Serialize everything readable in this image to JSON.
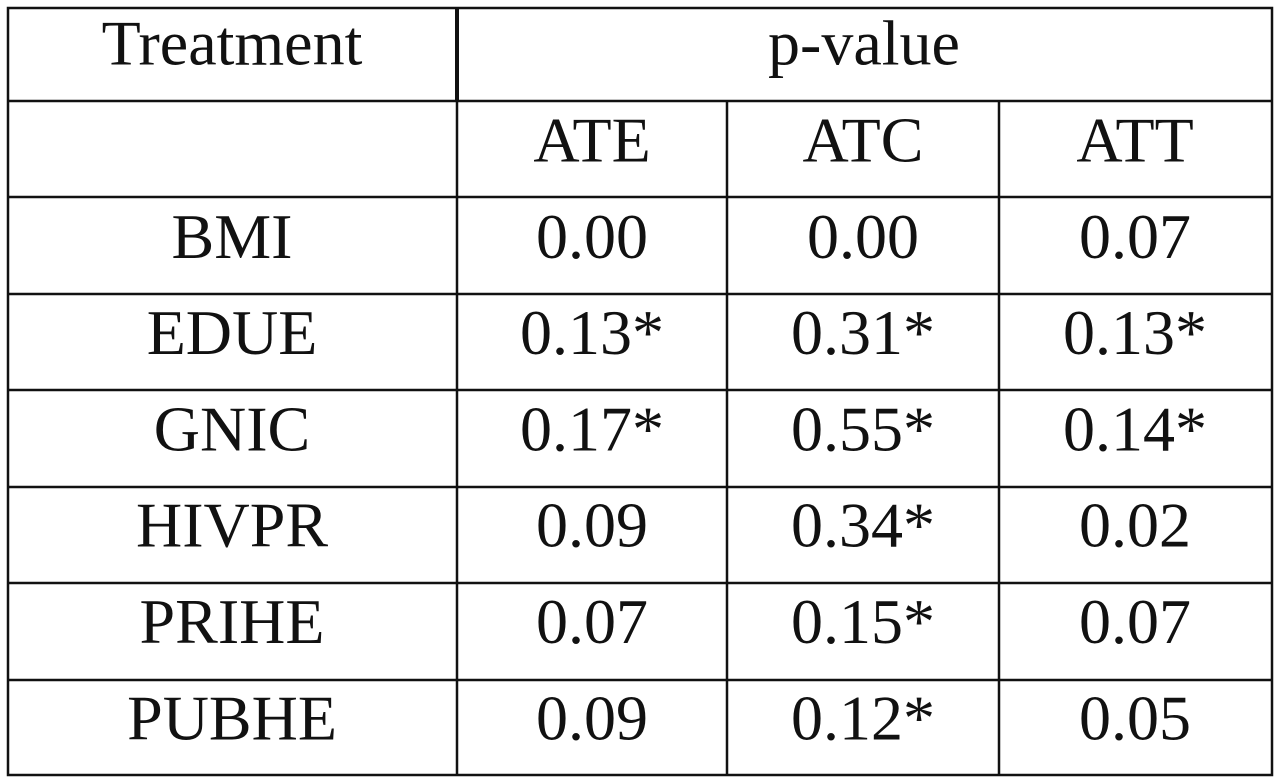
{
  "table": {
    "header": [
      "Treatment",
      "p-value"
    ],
    "subheader": [
      "ATE",
      "ATC",
      "ATT"
    ],
    "rows": [
      [
        "BMI",
        "0.00",
        "0.00",
        "0.07"
      ],
      [
        "EDUE",
        "0.13*",
        "0.31*",
        "0.13*"
      ],
      [
        "GNIC",
        "0.17*",
        "0.55*",
        "0.14*"
      ],
      [
        "HIVPR",
        "0.09",
        "0.34*",
        "0.02"
      ],
      [
        "PRIHE",
        "0.07",
        "0.15*",
        "0.07"
      ],
      [
        "PUBHE",
        "0.09",
        "0.12*",
        "0.05"
      ]
    ]
  }
}
